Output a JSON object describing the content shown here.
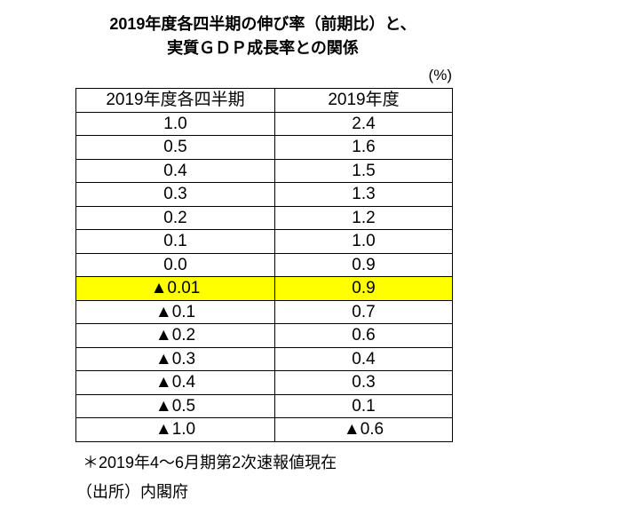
{
  "title": {
    "line1": "2019年度各四半期の伸び率（前期比）と、",
    "line2": "実質ＧＤＰ成長率との関係"
  },
  "unit_label": "(%)",
  "table": {
    "headers": [
      "2019年度各四半期",
      "2019年度"
    ],
    "highlight_color": "#ffff00",
    "rows": [
      {
        "quarterly": "1.0",
        "annual": "2.4"
      },
      {
        "quarterly": "0.5",
        "annual": "1.6"
      },
      {
        "quarterly": "0.4",
        "annual": "1.5"
      },
      {
        "quarterly": "0.3",
        "annual": "1.3"
      },
      {
        "quarterly": "0.2",
        "annual": "1.2"
      },
      {
        "quarterly": "0.1",
        "annual": "1.0"
      },
      {
        "quarterly": "0.0",
        "annual": "0.9"
      },
      {
        "quarterly": "▲0.01",
        "annual": "0.9",
        "highlight": true
      },
      {
        "quarterly": "▲0.1",
        "annual": "0.7"
      },
      {
        "quarterly": "▲0.2",
        "annual": "0.6"
      },
      {
        "quarterly": "▲0.3",
        "annual": "0.4"
      },
      {
        "quarterly": "▲0.4",
        "annual": "0.3"
      },
      {
        "quarterly": "▲0.5",
        "annual": "0.1"
      },
      {
        "quarterly": "▲1.0",
        "annual": "▲0.6"
      }
    ]
  },
  "footnotes": {
    "note": "＊2019年4～6月期第2次速報値現在",
    "source": "（出所）内閣府"
  },
  "chart_data": {
    "type": "table",
    "title": "2019年度各四半期の伸び率（前期比）と、実質ＧＤＰ成長率との関係",
    "unit": "%",
    "columns": [
      "2019年度各四半期",
      "2019年度"
    ],
    "rows": [
      [
        1.0,
        2.4
      ],
      [
        0.5,
        1.6
      ],
      [
        0.4,
        1.5
      ],
      [
        0.3,
        1.3
      ],
      [
        0.2,
        1.2
      ],
      [
        0.1,
        1.0
      ],
      [
        0.0,
        0.9
      ],
      [
        -0.01,
        0.9
      ],
      [
        -0.1,
        0.7
      ],
      [
        -0.2,
        0.6
      ],
      [
        -0.3,
        0.4
      ],
      [
        -0.4,
        0.3
      ],
      [
        -0.5,
        0.1
      ],
      [
        -1.0,
        -0.6
      ]
    ],
    "negative_marker": "▲",
    "highlighted_row_index": 7,
    "highlight_color": "#ffff00",
    "notes": [
      "＊2019年4～6月期第2次速報値現在",
      "（出所）内閣府"
    ]
  }
}
